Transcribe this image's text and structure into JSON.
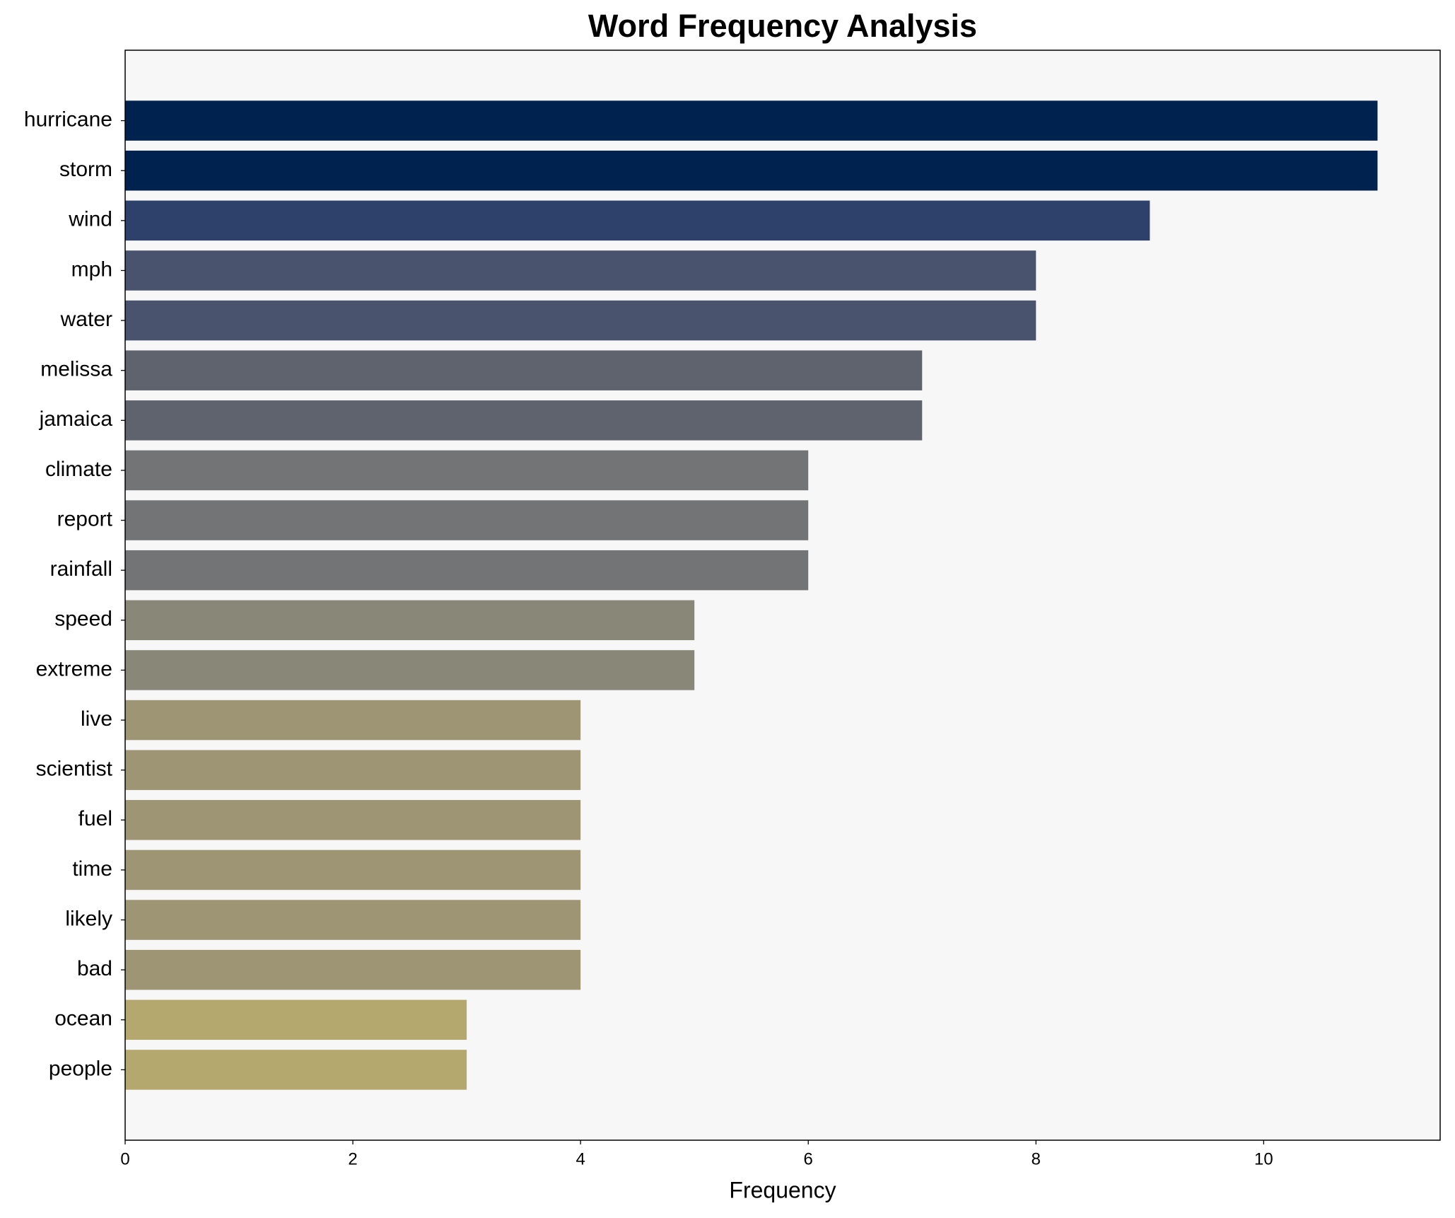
{
  "chart_data": {
    "type": "barh",
    "title": "Word Frequency Analysis",
    "xlabel": "Frequency",
    "categories": [
      "hurricane",
      "storm",
      "wind",
      "mph",
      "water",
      "melissa",
      "jamaica",
      "climate",
      "report",
      "rainfall",
      "speed",
      "extreme",
      "live",
      "scientist",
      "fuel",
      "time",
      "likely",
      "bad",
      "ocean",
      "people"
    ],
    "values": [
      11,
      11,
      9,
      8,
      8,
      7,
      7,
      6,
      6,
      6,
      5,
      5,
      4,
      4,
      4,
      4,
      4,
      4,
      3,
      3
    ],
    "colors": [
      "#00224e",
      "#00224e",
      "#2e416b",
      "#49536e",
      "#49536e",
      "#5f636e",
      "#5f636e",
      "#737475",
      "#737475",
      "#737475",
      "#898777",
      "#898777",
      "#9e9574",
      "#9e9574",
      "#9e9574",
      "#9e9574",
      "#9e9574",
      "#9e9574",
      "#b4a86f",
      "#b4a86f"
    ],
    "xlim": [
      0,
      11.55
    ],
    "xticks": [
      0,
      2,
      4,
      6,
      8,
      10
    ],
    "background": "#f7f7f7"
  }
}
